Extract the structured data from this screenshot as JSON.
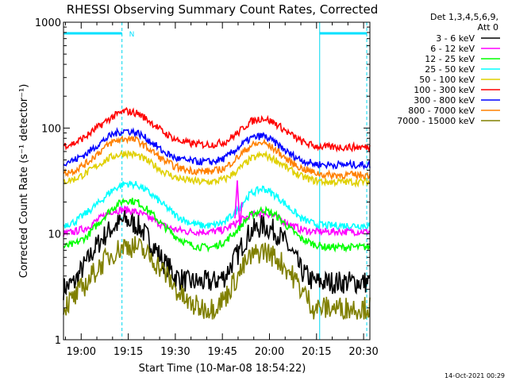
{
  "chart_data": {
    "type": "line",
    "title": "RHESSI Observing Summary Count Rates, Corrected",
    "xlabel": "Start Time (10-Mar-08 18:54:22)",
    "ylabel": "Corrected Count Rate (s⁻¹ detector⁻¹)",
    "y_scale": "log",
    "ylim": [
      1,
      1000
    ],
    "y_ticks": [
      {
        "value": 1,
        "label": "1"
      },
      {
        "value": 10,
        "label": "10"
      },
      {
        "value": 100,
        "label": "100"
      },
      {
        "value": 1000,
        "label": "1000"
      }
    ],
    "xlim": [
      "18:54:22",
      "20:32:00"
    ],
    "x_ticks": [
      "19:00",
      "19:15",
      "19:30",
      "19:45",
      "20:00",
      "20:15",
      "20:30"
    ],
    "x": [
      "18:54",
      "18:58",
      "19:02",
      "19:06",
      "19:10",
      "19:14",
      "19:18",
      "19:22",
      "19:26",
      "19:30",
      "19:34",
      "19:38",
      "19:42",
      "19:46",
      "19:50",
      "19:54",
      "19:58",
      "20:02",
      "20:06",
      "20:10",
      "20:14",
      "20:18",
      "20:22",
      "20:26",
      "20:30"
    ],
    "legend_header": [
      "Det 1,3,4,5,6,9,",
      "Att 0"
    ],
    "legend_placement": "right",
    "series": [
      {
        "name": "3 - 6 keV",
        "color": "#000000",
        "values": [
          3.0,
          3.5,
          5.5,
          8.5,
          11.5,
          13.5,
          12.0,
          8.5,
          5.5,
          4.0,
          3.5,
          3.5,
          3.5,
          4.0,
          6.5,
          10.5,
          12.0,
          10.5,
          7.5,
          4.5,
          3.5,
          3.5,
          3.5,
          3.5,
          3.5
        ]
      },
      {
        "name": "6 - 12 keV",
        "color": "#ff00ff",
        "values": [
          10.0,
          10.5,
          11.5,
          14.0,
          16.5,
          17.0,
          16.0,
          14.0,
          12.0,
          11.0,
          10.5,
          10.5,
          10.5,
          11.0,
          13.0,
          15.0,
          16.0,
          14.5,
          12.5,
          11.0,
          10.5,
          10.5,
          10.5,
          10.5,
          10.5
        ]
      },
      {
        "name": "12 - 25 keV",
        "color": "#00ff00",
        "values": [
          7.5,
          8.0,
          9.5,
          13.0,
          17.5,
          21.0,
          20.0,
          16.0,
          12.0,
          9.5,
          8.0,
          7.5,
          7.5,
          8.5,
          11.0,
          15.0,
          17.0,
          15.0,
          11.5,
          9.0,
          8.0,
          7.5,
          7.5,
          7.5,
          7.5
        ]
      },
      {
        "name": "25 - 50 keV",
        "color": "#00ffff",
        "values": [
          12.0,
          13.0,
          16.0,
          20.0,
          26.0,
          30.0,
          29.0,
          24.0,
          19.0,
          15.0,
          13.0,
          12.0,
          12.0,
          13.0,
          17.0,
          24.0,
          27.0,
          23.0,
          18.0,
          14.0,
          12.5,
          12.0,
          12.0,
          12.0,
          12.0
        ]
      },
      {
        "name": "50 - 100 keV",
        "color": "#e0d000",
        "values": [
          31.0,
          33.0,
          38.0,
          46.0,
          54.0,
          58.0,
          55.0,
          47.0,
          39.0,
          34.0,
          32.0,
          31.0,
          31.0,
          33.0,
          40.0,
          51.0,
          56.0,
          50.0,
          41.0,
          35.0,
          32.0,
          31.0,
          31.0,
          31.0,
          31.0
        ]
      },
      {
        "name": "100 - 300 keV",
        "color": "#ff0000",
        "values": [
          68.0,
          72.0,
          85.0,
          105.0,
          128.0,
          145.0,
          138.0,
          115.0,
          92.0,
          78.0,
          72.0,
          70.0,
          70.0,
          74.0,
          90.0,
          115.0,
          125.0,
          110.0,
          90.0,
          75.0,
          68.0,
          66.0,
          66.0,
          66.0,
          66.0
        ]
      },
      {
        "name": "300 - 800 keV",
        "color": "#0000ff",
        "values": [
          47.0,
          50.0,
          58.0,
          72.0,
          87.0,
          95.0,
          90.0,
          75.0,
          60.0,
          52.0,
          49.0,
          48.0,
          48.0,
          52.0,
          65.0,
          80.0,
          85.0,
          72.0,
          58.0,
          50.0,
          46.0,
          45.0,
          45.0,
          45.0,
          45.0
        ]
      },
      {
        "name": "800 - 7000 keV",
        "color": "#ff8000",
        "values": [
          37.0,
          40.0,
          47.0,
          60.0,
          74.0,
          80.0,
          76.0,
          62.0,
          50.0,
          43.0,
          40.0,
          39.0,
          39.0,
          42.0,
          53.0,
          68.0,
          73.0,
          62.0,
          49.0,
          42.0,
          38.0,
          36.0,
          36.0,
          36.0,
          36.0
        ]
      },
      {
        "name": "7000 - 15000 keV",
        "color": "#808000",
        "values": [
          2.0,
          2.5,
          3.5,
          5.0,
          6.5,
          7.8,
          7.5,
          6.0,
          4.5,
          3.0,
          2.2,
          2.0,
          2.0,
          2.5,
          4.0,
          6.0,
          7.0,
          6.0,
          4.5,
          3.0,
          2.0,
          2.0,
          2.0,
          2.0,
          2.0
        ]
      }
    ],
    "annotations": [
      {
        "label": "N",
        "at": "19:14",
        "color": "#00e0ff"
      }
    ],
    "shading_spans": [
      {
        "start": "18:54:22",
        "end": "19:13",
        "color": "#00e0ff"
      },
      {
        "start": "20:16",
        "end": "20:31",
        "color": "#00e0ff"
      }
    ],
    "vertical_markers": [
      "18:54:22",
      "19:13",
      "20:16",
      "20:31"
    ],
    "spike": {
      "x": "19:50",
      "color": "#ff00ff",
      "peak": 32
    }
  },
  "footer": {
    "timestamp": "14-Oct-2021 00:29"
  }
}
